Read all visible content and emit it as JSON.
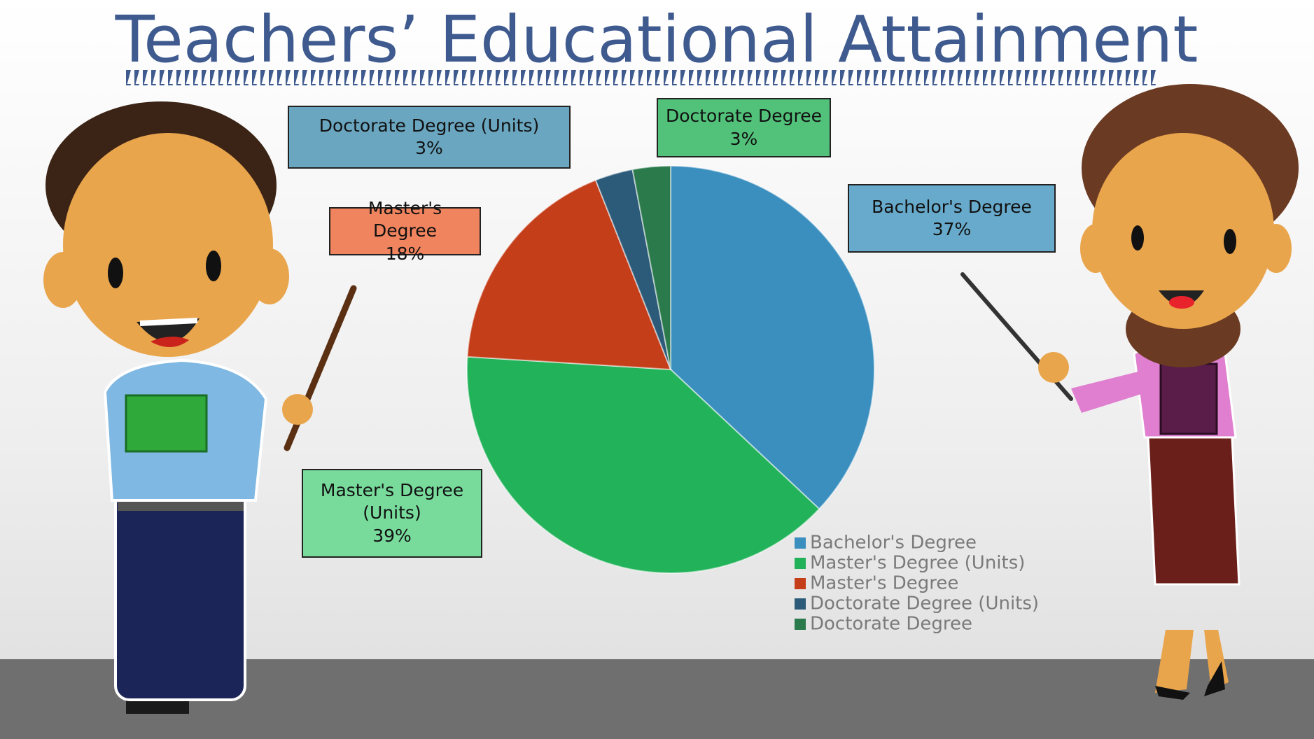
{
  "chart_data": {
    "type": "pie",
    "title": "Teachers’ Educational Attainment",
    "categories": [
      "Bachelor's Degree",
      "Master's Degree (Units)",
      "Master's Degree",
      "Doctorate Degree (Units)",
      "Doctorate Degree"
    ],
    "values": [
      37,
      39,
      18,
      3,
      3
    ],
    "value_labels": [
      "37%",
      "39%",
      "18%",
      "3%",
      "3%"
    ],
    "colors": [
      "#3a8fbf",
      "#22b259",
      "#c43e1a",
      "#2c5b79",
      "#2b7a4c"
    ],
    "label_colors": [
      "#68aacb",
      "#78db9c",
      "#f0845e",
      "#6aa6c0",
      "#52c27a"
    ],
    "legend": "bottom-right"
  }
}
